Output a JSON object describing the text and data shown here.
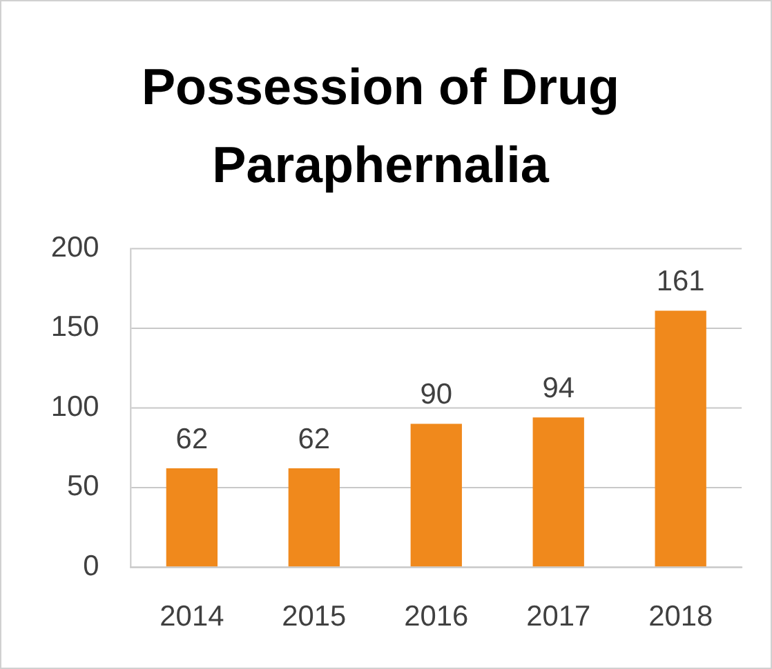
{
  "chart_data": {
    "type": "bar",
    "title": "Possession of Drug Paraphernalia",
    "categories": [
      "2014",
      "2015",
      "2016",
      "2017",
      "2018"
    ],
    "values": [
      62,
      62,
      90,
      94,
      161
    ],
    "color": "#f0891c",
    "ylim": [
      0,
      200
    ],
    "yticks": [
      0,
      50,
      100,
      150,
      200
    ],
    "grid": "y",
    "data_labels": true,
    "legend": false
  }
}
